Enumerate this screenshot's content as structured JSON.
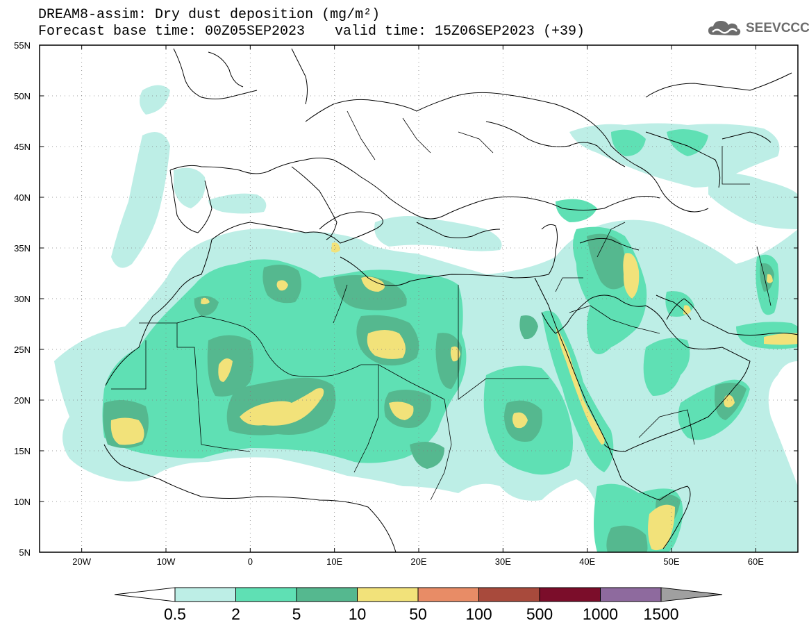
{
  "header": {
    "title": "DREAM8-assim: Dry dust deposition (mg/m²)",
    "forecast_base": "Forecast base time: 00Z05SEP2023",
    "valid_time": "valid time: 15Z06SEP2023 (+39)"
  },
  "logo": {
    "text": "SEEVCCC",
    "icon": "cloud-logo-icon"
  },
  "map": {
    "lon_range": [
      -25,
      65
    ],
    "lat_range": [
      5,
      55
    ],
    "lon_ticks": [
      {
        "value": -20,
        "label": "20W"
      },
      {
        "value": -10,
        "label": "10W"
      },
      {
        "value": 0,
        "label": "0"
      },
      {
        "value": 10,
        "label": "10E"
      },
      {
        "value": 20,
        "label": "20E"
      },
      {
        "value": 30,
        "label": "30E"
      },
      {
        "value": 40,
        "label": "40E"
      },
      {
        "value": 50,
        "label": "50E"
      },
      {
        "value": 60,
        "label": "60E"
      }
    ],
    "lat_ticks": [
      {
        "value": 55,
        "label": "55N"
      },
      {
        "value": 50,
        "label": "50N"
      },
      {
        "value": 45,
        "label": "45N"
      },
      {
        "value": 40,
        "label": "40N"
      },
      {
        "value": 35,
        "label": "35N"
      },
      {
        "value": 30,
        "label": "30N"
      },
      {
        "value": 25,
        "label": "25N"
      },
      {
        "value": 20,
        "label": "20N"
      },
      {
        "value": 15,
        "label": "15N"
      },
      {
        "value": 10,
        "label": "10N"
      },
      {
        "value": 5,
        "label": "5N"
      }
    ],
    "grid": "dotted"
  },
  "colorbar": {
    "colors": [
      "#bdeee6",
      "#5fe0b4",
      "#55b88f",
      "#f2e27a",
      "#e88c66",
      "#a84a3c",
      "#7b0d2a",
      "#8e6a9e"
    ],
    "labels": [
      "0.5",
      "2",
      "5",
      "10",
      "50",
      "100",
      "500",
      "1000",
      "1500"
    ],
    "under_color": "#ffffff",
    "over_color": "#a0a0a0"
  }
}
